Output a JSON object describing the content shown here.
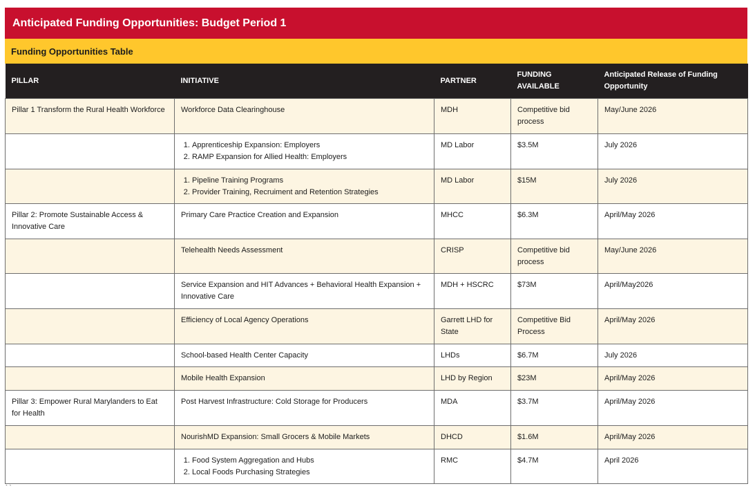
{
  "title": "Anticipated Funding Opportunities: Budget Period 1",
  "table_title": "Funding Opportunities Table",
  "headers": {
    "pillar": "PILLAR",
    "initiative": "INITIATIVE",
    "partner": "PARTNER",
    "funding": "FUNDING AVAILABLE",
    "release": "Anticipated Release of Funding Opportunity"
  },
  "rows": [
    {
      "pillar": "Pillar 1 Transform the Rural Health Workforce",
      "initiative": "Workforce Data Clearinghouse",
      "partner": "MDH",
      "funding": "Competitive bid process",
      "release": "May/June 2026"
    },
    {
      "pillar": "",
      "initiative_items": [
        "Apprenticeship Expansion: Employers",
        "RAMP Expansion for Allied Health: Employers"
      ],
      "partner": "MD Labor",
      "funding": "$3.5M",
      "release": "July 2026"
    },
    {
      "pillar": "",
      "initiative_items": [
        "Pipeline Training Programs",
        "Provider Training, Recruiment and Retention Strategies"
      ],
      "partner": "MD Labor",
      "funding": "$15M",
      "release": "July 2026"
    },
    {
      "pillar": "Pillar 2: Promote Sustainable Access & Innovative Care",
      "initiative": "Primary Care Practice Creation and Expansion",
      "partner": "MHCC",
      "funding": "$6.3M",
      "release": "April/May 2026"
    },
    {
      "pillar": "",
      "initiative": "Telehealth Needs Assessment",
      "partner": "CRISP",
      "funding": "Competitive bid process",
      "release": "May/June 2026"
    },
    {
      "pillar": "",
      "initiative": "Service Expansion and HIT Advances + Behavioral Health Expansion + Innovative Care",
      "partner": "MDH + HSCRC",
      "funding": "$73M",
      "release": "April/May2026"
    },
    {
      "pillar": "",
      "initiative": "Efficiency of Local Agency Operations",
      "partner": "Garrett LHD for State",
      "funding": "Competitive Bid Process",
      "release": "April/May 2026"
    },
    {
      "pillar": "",
      "initiative": "School-based Health Center Capacity",
      "partner": "LHDs",
      "funding": "$6.7M",
      "release": "July 2026"
    },
    {
      "pillar": "",
      "initiative": "Mobile Health Expansion",
      "partner": "LHD by Region",
      "funding": "$23M",
      "release": "April/May 2026"
    },
    {
      "pillar": "Pillar 3: Empower Rural Marylanders to Eat for Health",
      "initiative": "Post Harvest Infrastructure: Cold Storage for Producers",
      "partner": "MDA",
      "funding": "$3.7M",
      "release": "April/May 2026"
    },
    {
      "pillar": "",
      "initiative": "NourishMD Expansion: Small Grocers & Mobile Markets",
      "partner": "DHCD",
      "funding": "$1.6M",
      "release": "April/May 2026"
    },
    {
      "pillar": "",
      "initiative_items": [
        "Food System Aggregation and Hubs",
        "Local Foods Purchasing Strategies"
      ],
      "partner": "RMC",
      "funding": "$4.7M",
      "release": "April 2026"
    }
  ],
  "footnote": "` `"
}
